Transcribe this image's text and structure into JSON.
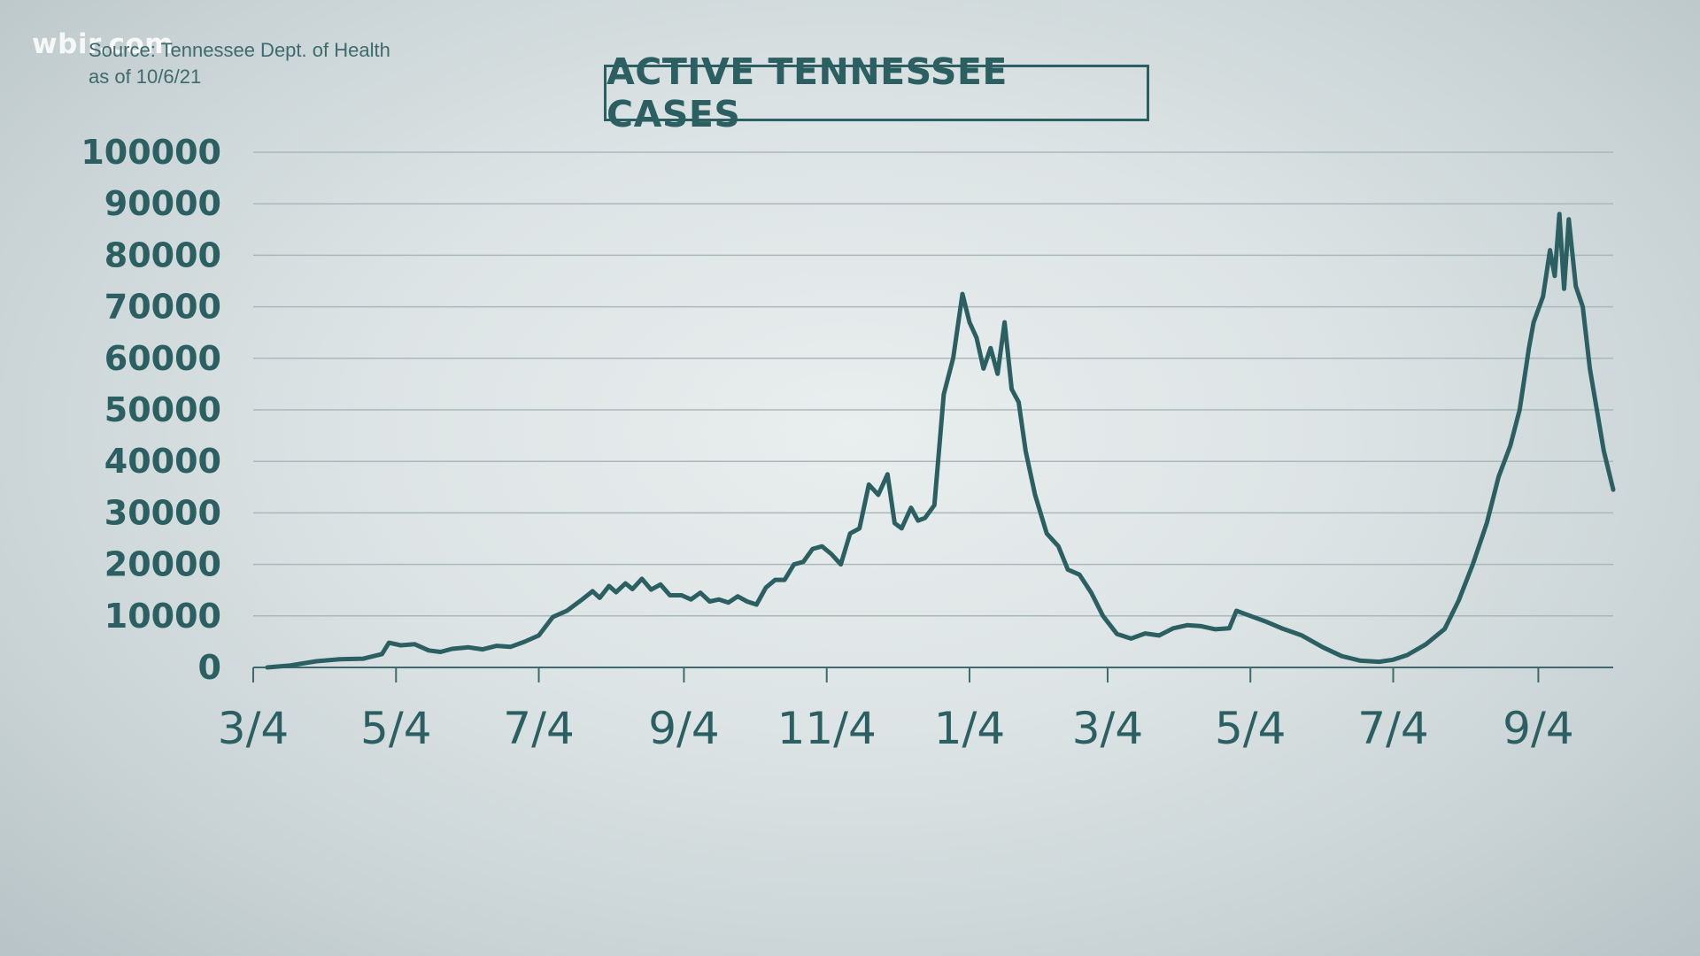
{
  "watermark": "wbir.com",
  "source": {
    "line1": "Source: Tennessee Dept. of Health",
    "line2": "as of 10/6/21"
  },
  "colors": {
    "line": "#2b5f62",
    "grid": "#aab8ba",
    "axis": "#3f6a6d"
  },
  "chart_data": {
    "type": "line",
    "title": "ACTIVE TENNESSEE CASES",
    "xlabel": "",
    "ylabel": "",
    "ylim": [
      0,
      100000
    ],
    "yticks": [
      0,
      10000,
      20000,
      30000,
      40000,
      50000,
      60000,
      70000,
      80000,
      90000,
      100000
    ],
    "xlim": [
      "2020-03-04",
      "2021-10-06"
    ],
    "xticks": [
      {
        "date": "2020-03-04",
        "label": "3/4"
      },
      {
        "date": "2020-05-04",
        "label": "5/4"
      },
      {
        "date": "2020-07-04",
        "label": "7/4"
      },
      {
        "date": "2020-09-04",
        "label": "9/4"
      },
      {
        "date": "2020-11-04",
        "label": "11/4"
      },
      {
        "date": "2021-01-04",
        "label": "1/4"
      },
      {
        "date": "2021-03-04",
        "label": "3/4"
      },
      {
        "date": "2021-05-04",
        "label": "5/4"
      },
      {
        "date": "2021-07-04",
        "label": "7/4"
      },
      {
        "date": "2021-09-04",
        "label": "9/4"
      }
    ],
    "grid": true,
    "series": [
      {
        "points": [
          [
            "2020-03-10",
            0
          ],
          [
            "2020-03-20",
            400
          ],
          [
            "2020-03-31",
            1200
          ],
          [
            "2020-04-10",
            1600
          ],
          [
            "2020-04-20",
            1700
          ],
          [
            "2020-04-28",
            2600
          ],
          [
            "2020-05-01",
            4800
          ],
          [
            "2020-05-06",
            4300
          ],
          [
            "2020-05-12",
            4500
          ],
          [
            "2020-05-18",
            3300
          ],
          [
            "2020-05-23",
            3000
          ],
          [
            "2020-05-28",
            3600
          ],
          [
            "2020-06-04",
            3900
          ],
          [
            "2020-06-10",
            3500
          ],
          [
            "2020-06-16",
            4200
          ],
          [
            "2020-06-22",
            4000
          ],
          [
            "2020-06-28",
            5000
          ],
          [
            "2020-07-04",
            6200
          ],
          [
            "2020-07-10",
            9800
          ],
          [
            "2020-07-16",
            11000
          ],
          [
            "2020-07-22",
            13000
          ],
          [
            "2020-07-27",
            14800
          ],
          [
            "2020-07-30",
            13500
          ],
          [
            "2020-08-03",
            15800
          ],
          [
            "2020-08-06",
            14600
          ],
          [
            "2020-08-10",
            16300
          ],
          [
            "2020-08-13",
            15200
          ],
          [
            "2020-08-17",
            17200
          ],
          [
            "2020-08-21",
            15100
          ],
          [
            "2020-08-25",
            16100
          ],
          [
            "2020-08-29",
            14000
          ],
          [
            "2020-09-03",
            14000
          ],
          [
            "2020-09-07",
            13200
          ],
          [
            "2020-09-11",
            14500
          ],
          [
            "2020-09-15",
            12800
          ],
          [
            "2020-09-19",
            13200
          ],
          [
            "2020-09-23",
            12600
          ],
          [
            "2020-09-27",
            13800
          ],
          [
            "2020-10-01",
            12800
          ],
          [
            "2020-10-05",
            12200
          ],
          [
            "2020-10-09",
            15500
          ],
          [
            "2020-10-13",
            17000
          ],
          [
            "2020-10-17",
            17000
          ],
          [
            "2020-10-21",
            20000
          ],
          [
            "2020-10-25",
            20500
          ],
          [
            "2020-10-29",
            23000
          ],
          [
            "2020-11-02",
            23500
          ],
          [
            "2020-11-06",
            22000
          ],
          [
            "2020-11-10",
            20000
          ],
          [
            "2020-11-14",
            26000
          ],
          [
            "2020-11-18",
            27000
          ],
          [
            "2020-11-22",
            35500
          ],
          [
            "2020-11-26",
            33500
          ],
          [
            "2020-11-30",
            37500
          ],
          [
            "2020-12-03",
            28000
          ],
          [
            "2020-12-06",
            27000
          ],
          [
            "2020-12-10",
            31000
          ],
          [
            "2020-12-13",
            28500
          ],
          [
            "2020-12-16",
            29000
          ],
          [
            "2020-12-20",
            31500
          ],
          [
            "2020-12-24",
            53000
          ],
          [
            "2020-12-28",
            60000
          ],
          [
            "2021-01-01",
            72500
          ],
          [
            "2021-01-04",
            67000
          ],
          [
            "2021-01-07",
            64000
          ],
          [
            "2021-01-10",
            58000
          ],
          [
            "2021-01-13",
            62000
          ],
          [
            "2021-01-16",
            57000
          ],
          [
            "2021-01-19",
            67000
          ],
          [
            "2021-01-22",
            54000
          ],
          [
            "2021-01-25",
            51500
          ],
          [
            "2021-01-28",
            42000
          ],
          [
            "2021-02-01",
            33500
          ],
          [
            "2021-02-06",
            26000
          ],
          [
            "2021-02-11",
            23500
          ],
          [
            "2021-02-15",
            19000
          ],
          [
            "2021-02-20",
            18000
          ],
          [
            "2021-02-25",
            14500
          ],
          [
            "2021-03-02",
            10000
          ],
          [
            "2021-03-08",
            6500
          ],
          [
            "2021-03-14",
            5600
          ],
          [
            "2021-03-20",
            6600
          ],
          [
            "2021-03-26",
            6200
          ],
          [
            "2021-04-01",
            7600
          ],
          [
            "2021-04-07",
            8200
          ],
          [
            "2021-04-13",
            8000
          ],
          [
            "2021-04-19",
            7400
          ],
          [
            "2021-04-25",
            7600
          ],
          [
            "2021-04-28",
            11000
          ],
          [
            "2021-05-04",
            10000
          ],
          [
            "2021-05-10",
            9000
          ],
          [
            "2021-05-18",
            7500
          ],
          [
            "2021-05-26",
            6200
          ],
          [
            "2021-06-04",
            3900
          ],
          [
            "2021-06-12",
            2200
          ],
          [
            "2021-06-20",
            1300
          ],
          [
            "2021-06-28",
            1100
          ],
          [
            "2021-07-04",
            1500
          ],
          [
            "2021-07-10",
            2400
          ],
          [
            "2021-07-18",
            4500
          ],
          [
            "2021-07-26",
            7500
          ],
          [
            "2021-08-01",
            13000
          ],
          [
            "2021-08-07",
            20000
          ],
          [
            "2021-08-13",
            28000
          ],
          [
            "2021-08-18",
            37000
          ],
          [
            "2021-08-23",
            43000
          ],
          [
            "2021-08-27",
            50000
          ],
          [
            "2021-08-31",
            62000
          ],
          [
            "2021-09-02",
            67000
          ],
          [
            "2021-09-06",
            72000
          ],
          [
            "2021-09-09",
            81000
          ],
          [
            "2021-09-11",
            76000
          ],
          [
            "2021-09-13",
            88000
          ],
          [
            "2021-09-15",
            73500
          ],
          [
            "2021-09-17",
            87000
          ],
          [
            "2021-09-20",
            74000
          ],
          [
            "2021-09-23",
            70000
          ],
          [
            "2021-09-26",
            58000
          ],
          [
            "2021-09-29",
            50000
          ],
          [
            "2021-10-02",
            42000
          ],
          [
            "2021-10-06",
            34500
          ]
        ]
      }
    ]
  }
}
